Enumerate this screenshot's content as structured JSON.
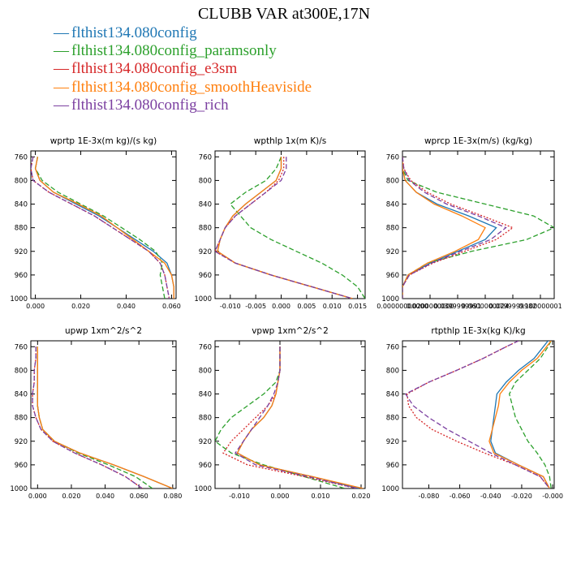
{
  "figure": {
    "title": "CLUBB VAR at300E,17N",
    "legend": [
      {
        "prefix": "—",
        "label": "flthist134.080config",
        "color": "#1f77b4"
      },
      {
        "prefix": "—",
        "label": "flthist134.080config_paramsonly",
        "color": "#2ca02c"
      },
      {
        "prefix": "—",
        "label": "flthist134.080config_e3sm",
        "color": "#d62728"
      },
      {
        "prefix": "—",
        "label": "flthist134.080config_smoothHeaviside",
        "color": "#ff7f0e"
      },
      {
        "prefix": "—",
        "label": "flthist134.080config_rich",
        "color": "#7b3fa0"
      }
    ]
  },
  "chart_data": [
    {
      "type": "line",
      "title": "wprtp  1E-3x(m kg)/(s kg)",
      "xlim": [
        -0.002,
        0.062
      ],
      "ylim": [
        1000,
        750
      ],
      "xticks": [
        0.0,
        0.02,
        0.04,
        0.06
      ],
      "xtick_labels": [
        "0.000",
        "0.020",
        "0.040",
        "0.060"
      ],
      "yticks": [
        760,
        800,
        840,
        880,
        920,
        960,
        1000
      ],
      "y": [
        760,
        780,
        800,
        820,
        840,
        860,
        880,
        900,
        920,
        940,
        960,
        980,
        1000
      ],
      "series": [
        {
          "color": "#1f77b4",
          "dash": "",
          "x": [
            0.001,
            0.0,
            0.002,
            0.008,
            0.018,
            0.028,
            0.036,
            0.044,
            0.052,
            0.058,
            0.06,
            0.061,
            0.061
          ]
        },
        {
          "color": "#2ca02c",
          "dash": "6,3",
          "x": [
            0.001,
            0.0,
            0.003,
            0.01,
            0.02,
            0.03,
            0.038,
            0.046,
            0.053,
            0.056,
            0.055,
            0.056,
            0.057
          ]
        },
        {
          "color": "#d62728",
          "dash": "2,2",
          "x": [
            -0.001,
            -0.002,
            -0.001,
            0.006,
            0.016,
            0.026,
            0.034,
            0.042,
            0.05,
            0.055,
            0.057,
            0.058,
            0.059
          ]
        },
        {
          "color": "#ff7f0e",
          "dash": "",
          "x": [
            0.001,
            0.0,
            0.002,
            0.008,
            0.019,
            0.029,
            0.036,
            0.043,
            0.05,
            0.057,
            0.06,
            0.061,
            0.061
          ]
        },
        {
          "color": "#7b3fa0",
          "dash": "6,3",
          "x": [
            -0.001,
            -0.002,
            -0.001,
            0.006,
            0.016,
            0.026,
            0.034,
            0.042,
            0.05,
            0.055,
            0.057,
            0.058,
            0.059
          ]
        }
      ]
    },
    {
      "type": "line",
      "title": "wpthlp  1x(m K)/s",
      "xlim": [
        -0.013,
        0.0165
      ],
      "ylim": [
        1000,
        750
      ],
      "xticks": [
        -0.01,
        -0.005,
        0.0,
        0.005,
        0.01,
        0.015
      ],
      "xtick_labels": [
        "-0.010",
        "-0.005",
        "0.000",
        "0.005",
        "0.010",
        "0.015"
      ],
      "yticks": [
        760,
        800,
        840,
        880,
        920,
        960,
        1000
      ],
      "y": [
        760,
        780,
        800,
        820,
        840,
        860,
        880,
        900,
        920,
        940,
        960,
        980,
        1000
      ],
      "series": [
        {
          "color": "#1f77b4",
          "dash": "",
          "x": [
            0.0,
            0.0,
            -0.001,
            -0.004,
            -0.007,
            -0.0095,
            -0.011,
            -0.012,
            -0.0125,
            -0.009,
            -0.002,
            0.006,
            0.014
          ]
        },
        {
          "color": "#2ca02c",
          "dash": "6,3",
          "x": [
            0.0,
            -0.001,
            -0.003,
            -0.007,
            -0.01,
            -0.008,
            -0.006,
            -0.002,
            0.003,
            0.008,
            0.012,
            0.015,
            0.0165
          ]
        },
        {
          "color": "#d62728",
          "dash": "2,2",
          "x": [
            0.0005,
            0.0005,
            -0.0005,
            -0.003,
            -0.006,
            -0.009,
            -0.011,
            -0.012,
            -0.013,
            -0.009,
            -0.002,
            0.006,
            0.014
          ]
        },
        {
          "color": "#ff7f0e",
          "dash": "",
          "x": [
            0.0,
            0.0,
            -0.001,
            -0.004,
            -0.007,
            -0.0095,
            -0.011,
            -0.012,
            -0.0125,
            -0.009,
            -0.002,
            0.006,
            0.014
          ]
        },
        {
          "color": "#7b3fa0",
          "dash": "6,3",
          "x": [
            0.001,
            0.001,
            0.0,
            -0.003,
            -0.006,
            -0.009,
            -0.011,
            -0.012,
            -0.013,
            -0.009,
            -0.002,
            0.006,
            0.014
          ]
        }
      ]
    },
    {
      "type": "line",
      "title": "wprcp  1E-3x(m/s) (kg/kg)",
      "xlim": [
        0.0,
        0.11
      ],
      "ylim": [
        1000,
        750
      ],
      "xticks": [
        0.0,
        0.02,
        0.04,
        0.06,
        0.08,
        0.1
      ],
      "xtick_labels": [
        "0.00000000000",
        "0.0200000000",
        "0.0399999991",
        "0.0600000024",
        "0.0799999982",
        "0.100000001"
      ],
      "yticks": [
        760,
        800,
        840,
        880,
        920,
        960,
        1000
      ],
      "y": [
        760,
        780,
        800,
        820,
        840,
        860,
        880,
        900,
        920,
        940,
        960,
        980,
        1000
      ],
      "series": [
        {
          "color": "#1f77b4",
          "dash": "",
          "x": [
            0.0,
            0.0,
            0.002,
            0.01,
            0.025,
            0.048,
            0.068,
            0.06,
            0.04,
            0.02,
            0.004,
            0.0,
            0.0
          ]
        },
        {
          "color": "#2ca02c",
          "dash": "6,3",
          "x": [
            0.0,
            0.0,
            0.004,
            0.025,
            0.06,
            0.095,
            0.11,
            0.09,
            0.05,
            0.018,
            0.004,
            0.0,
            0.0
          ]
        },
        {
          "color": "#d62728",
          "dash": "2,2",
          "x": [
            0.0,
            0.001,
            0.006,
            0.018,
            0.035,
            0.058,
            0.08,
            0.068,
            0.045,
            0.022,
            0.005,
            0.0,
            0.0
          ]
        },
        {
          "color": "#ff7f0e",
          "dash": "",
          "x": [
            0.0,
            0.0,
            0.002,
            0.01,
            0.023,
            0.043,
            0.06,
            0.055,
            0.038,
            0.018,
            0.004,
            0.0,
            0.0
          ]
        },
        {
          "color": "#7b3fa0",
          "dash": "6,3",
          "x": [
            0.0,
            0.001,
            0.005,
            0.016,
            0.032,
            0.055,
            0.075,
            0.064,
            0.042,
            0.021,
            0.005,
            0.0,
            0.0
          ]
        }
      ]
    },
    {
      "type": "line",
      "title": "upwp  1xm^2/s^2",
      "xlim": [
        -0.004,
        0.082
      ],
      "ylim": [
        1000,
        750
      ],
      "xticks": [
        0.0,
        0.02,
        0.04,
        0.06,
        0.08
      ],
      "xtick_labels": [
        "0.000",
        "0.020",
        "0.040",
        "0.060",
        "0.080"
      ],
      "yticks": [
        760,
        800,
        840,
        880,
        920,
        960,
        1000
      ],
      "y": [
        760,
        780,
        800,
        820,
        840,
        860,
        880,
        900,
        920,
        940,
        960,
        980,
        1000
      ],
      "series": [
        {
          "color": "#1f77b4",
          "dash": "",
          "x": [
            0.0,
            0.0,
            0.0,
            0.0,
            0.0,
            0.0,
            0.001,
            0.003,
            0.01,
            0.025,
            0.045,
            0.063,
            0.08
          ]
        },
        {
          "color": "#2ca02c",
          "dash": "6,3",
          "x": [
            0.0,
            0.0,
            0.0,
            0.0,
            0.0,
            0.0,
            0.001,
            0.003,
            0.01,
            0.024,
            0.042,
            0.058,
            0.068
          ]
        },
        {
          "color": "#d62728",
          "dash": "2,2",
          "x": [
            -0.001,
            -0.001,
            -0.002,
            -0.002,
            -0.003,
            -0.003,
            -0.001,
            0.002,
            0.009,
            0.022,
            0.038,
            0.052,
            0.062
          ]
        },
        {
          "color": "#ff7f0e",
          "dash": "",
          "x": [
            0.0,
            0.0,
            0.0,
            0.0,
            0.0,
            0.0,
            0.001,
            0.003,
            0.01,
            0.025,
            0.045,
            0.063,
            0.08
          ]
        },
        {
          "color": "#7b3fa0",
          "dash": "6,3",
          "x": [
            -0.001,
            -0.001,
            -0.002,
            -0.002,
            -0.003,
            -0.003,
            -0.001,
            0.002,
            0.009,
            0.022,
            0.038,
            0.052,
            0.062
          ]
        }
      ]
    },
    {
      "type": "line",
      "title": "vpwp  1xm^2/s^2",
      "xlim": [
        -0.016,
        0.021
      ],
      "ylim": [
        1000,
        750
      ],
      "xticks": [
        -0.01,
        0.0,
        0.01,
        0.02
      ],
      "xtick_labels": [
        "-0.010",
        "0.000",
        "0.010",
        "0.020"
      ],
      "yticks": [
        760,
        800,
        840,
        880,
        920,
        960,
        1000
      ],
      "y": [
        760,
        780,
        800,
        820,
        840,
        860,
        880,
        900,
        920,
        940,
        960,
        980,
        1000
      ],
      "series": [
        {
          "color": "#1f77b4",
          "dash": "",
          "x": [
            0.0,
            0.0,
            0.0,
            -0.0005,
            -0.001,
            -0.002,
            -0.004,
            -0.007,
            -0.009,
            -0.0105,
            -0.005,
            0.008,
            0.0195
          ]
        },
        {
          "color": "#2ca02c",
          "dash": "6,3",
          "x": [
            0.0,
            0.0,
            0.0,
            -0.001,
            -0.004,
            -0.008,
            -0.012,
            -0.0145,
            -0.016,
            -0.012,
            -0.004,
            0.006,
            0.016
          ]
        },
        {
          "color": "#d62728",
          "dash": "2,2",
          "x": [
            0.0,
            0.0,
            0.0,
            -0.0005,
            -0.001,
            -0.003,
            -0.006,
            -0.009,
            -0.012,
            -0.014,
            -0.008,
            0.006,
            0.019
          ]
        },
        {
          "color": "#ff7f0e",
          "dash": "",
          "x": [
            0.0,
            0.0,
            0.0,
            -0.0005,
            -0.001,
            -0.002,
            -0.004,
            -0.007,
            -0.009,
            -0.0105,
            -0.005,
            0.008,
            0.0205
          ]
        },
        {
          "color": "#7b3fa0",
          "dash": "6,3",
          "x": [
            0.0,
            0.0,
            0.0,
            -0.0005,
            -0.0015,
            -0.003,
            -0.005,
            -0.007,
            -0.009,
            -0.011,
            -0.006,
            0.007,
            0.019
          ]
        }
      ]
    },
    {
      "type": "line",
      "title": "rtpthlp  1E-3x(kg K)/kg",
      "xlim": [
        -0.097,
        0.001
      ],
      "ylim": [
        1000,
        750
      ],
      "xticks": [
        -0.08,
        -0.06,
        -0.04,
        -0.02,
        0.0
      ],
      "xtick_labels": [
        "-0.080",
        "-0.060",
        "-0.040",
        "-0.020",
        "-0.000"
      ],
      "yticks": [
        760,
        800,
        840,
        880,
        920,
        960,
        1000
      ],
      "y": [
        750,
        760,
        780,
        800,
        820,
        840,
        860,
        880,
        900,
        920,
        940,
        960,
        980,
        1000
      ],
      "series": [
        {
          "color": "#1f77b4",
          "dash": "",
          "x": [
            -0.003,
            -0.006,
            -0.012,
            -0.022,
            -0.03,
            -0.036,
            -0.037,
            -0.038,
            -0.039,
            -0.04,
            -0.037,
            -0.022,
            -0.006,
            -0.002
          ]
        },
        {
          "color": "#2ca02c",
          "dash": "6,3",
          "x": [
            -0.001,
            -0.003,
            -0.008,
            -0.016,
            -0.024,
            -0.028,
            -0.026,
            -0.024,
            -0.02,
            -0.016,
            -0.01,
            -0.005,
            -0.002,
            -0.001
          ]
        },
        {
          "color": "#d62728",
          "dash": "2,2",
          "x": [
            -0.022,
            -0.03,
            -0.045,
            -0.062,
            -0.08,
            -0.094,
            -0.093,
            -0.088,
            -0.078,
            -0.062,
            -0.044,
            -0.024,
            -0.008,
            -0.002
          ]
        },
        {
          "color": "#ff7f0e",
          "dash": "",
          "x": [
            -0.001,
            -0.004,
            -0.01,
            -0.02,
            -0.028,
            -0.034,
            -0.035,
            -0.037,
            -0.039,
            -0.041,
            -0.038,
            -0.022,
            -0.006,
            -0.002
          ]
        },
        {
          "color": "#7b3fa0",
          "dash": "6,3",
          "x": [
            -0.022,
            -0.03,
            -0.045,
            -0.062,
            -0.08,
            -0.095,
            -0.09,
            -0.08,
            -0.068,
            -0.054,
            -0.04,
            -0.024,
            -0.008,
            -0.002
          ]
        }
      ]
    }
  ]
}
